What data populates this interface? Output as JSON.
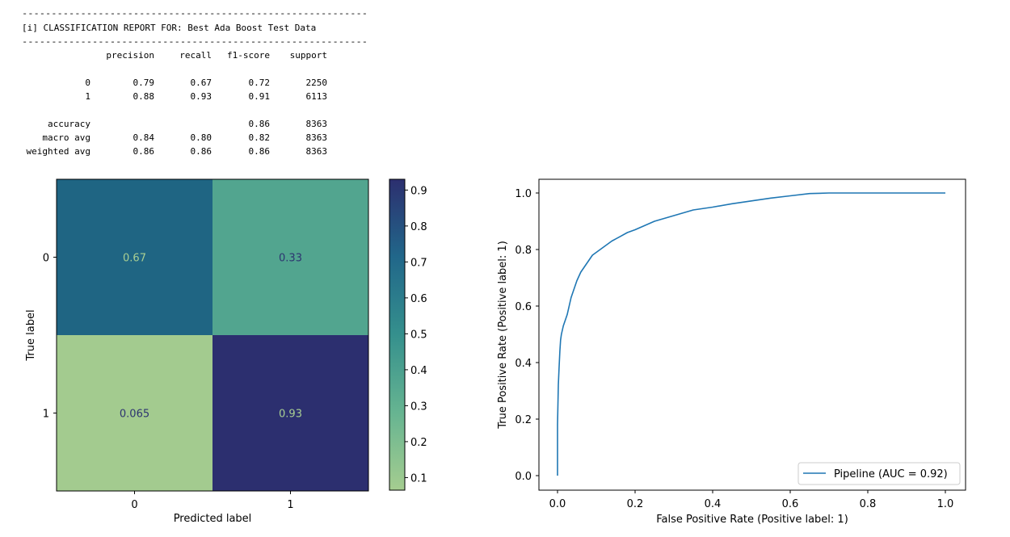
{
  "report": {
    "separator": "-----------------------------------------------------------",
    "title": "[i] CLASSIFICATION REPORT FOR: Best Ada Boost Test Data",
    "columns": [
      "precision",
      "recall",
      "f1-score",
      "support"
    ],
    "rows": [
      {
        "label": "0",
        "values": [
          "0.79",
          "0.67",
          "0.72",
          "2250"
        ]
      },
      {
        "label": "1",
        "values": [
          "0.88",
          "0.93",
          "0.91",
          "6113"
        ]
      },
      {
        "label": "accuracy",
        "values": [
          "",
          "",
          "0.86",
          "8363"
        ]
      },
      {
        "label": "macro avg",
        "values": [
          "0.84",
          "0.80",
          "0.82",
          "8363"
        ]
      },
      {
        "label": "weighted avg",
        "values": [
          "0.86",
          "0.86",
          "0.86",
          "8363"
        ]
      }
    ]
  },
  "chart_data": [
    {
      "type": "heatmap",
      "xlabel": "Predicted label",
      "ylabel": "True label",
      "x_categories": [
        "0",
        "1"
      ],
      "y_categories": [
        "0",
        "1"
      ],
      "values": [
        [
          0.67,
          0.33
        ],
        [
          0.065,
          0.93
        ]
      ],
      "value_labels": [
        [
          "0.67",
          "0.33"
        ],
        [
          "0.065",
          "0.93"
        ]
      ],
      "colormap": "crest",
      "colorbar_range": [
        0.065,
        0.93
      ],
      "colorbar_ticks": [
        0.1,
        0.2,
        0.3,
        0.4,
        0.5,
        0.6,
        0.7,
        0.8,
        0.9
      ],
      "colors": {
        "0.065": "#a3cb8f",
        "0.33": "#52a58f",
        "0.67": "#1f6583",
        "0.93": "#2c2f6f"
      }
    },
    {
      "type": "line",
      "xlabel": "False Positive Rate (Positive label: 1)",
      "ylabel": "True Positive Rate (Positive label: 1)",
      "xlim": [
        0.0,
        1.0
      ],
      "ylim": [
        0.0,
        1.0
      ],
      "xticks": [
        0.0,
        0.2,
        0.4,
        0.6,
        0.8,
        1.0
      ],
      "yticks": [
        0.0,
        0.2,
        0.4,
        0.6,
        0.8,
        1.0
      ],
      "legend_position": "lower-right",
      "series": [
        {
          "name": "Pipeline (AUC = 0.92)",
          "color": "#1f77b4",
          "x": [
            0.0,
            0.0,
            0.002,
            0.004,
            0.006,
            0.008,
            0.01,
            0.015,
            0.02,
            0.025,
            0.03,
            0.035,
            0.04,
            0.045,
            0.05,
            0.06,
            0.07,
            0.08,
            0.09,
            0.1,
            0.12,
            0.14,
            0.16,
            0.18,
            0.2,
            0.25,
            0.3,
            0.35,
            0.4,
            0.45,
            0.5,
            0.55,
            0.6,
            0.65,
            0.7,
            0.8,
            0.9,
            1.0
          ],
          "y": [
            0.0,
            0.18,
            0.32,
            0.38,
            0.44,
            0.48,
            0.5,
            0.53,
            0.55,
            0.57,
            0.6,
            0.63,
            0.65,
            0.67,
            0.69,
            0.72,
            0.74,
            0.76,
            0.78,
            0.79,
            0.81,
            0.83,
            0.845,
            0.86,
            0.87,
            0.9,
            0.92,
            0.94,
            0.95,
            0.962,
            0.972,
            0.982,
            0.99,
            0.998,
            1.0,
            1.0,
            1.0,
            1.0
          ]
        }
      ]
    }
  ]
}
